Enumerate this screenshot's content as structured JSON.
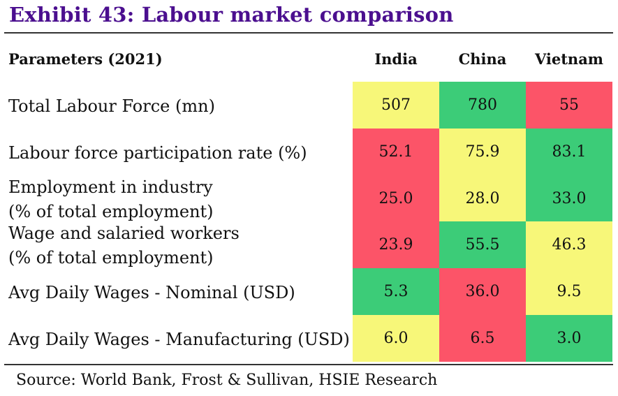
{
  "title": "Exhibit 43: Labour market comparison",
  "header": {
    "parameter": "Parameters (2021)",
    "countries": [
      "India",
      "China",
      "Vietnam"
    ]
  },
  "colors": {
    "title": "#4b0f8f",
    "green": "#3ccc78",
    "yellow": "#f7f779",
    "red": "#fc5468"
  },
  "rows": [
    {
      "label_lines": [
        "Total Labour Force (mn)"
      ],
      "values": [
        "507",
        "780",
        "55"
      ],
      "colors": [
        "yellow",
        "green",
        "red"
      ]
    },
    {
      "label_lines": [
        "Labour force participation rate (%)"
      ],
      "values": [
        "52.1",
        "75.9",
        "83.1"
      ],
      "colors": [
        "red",
        "yellow",
        "green"
      ]
    },
    {
      "label_lines": [
        "Employment in industry",
        "(% of total employment)"
      ],
      "values": [
        "25.0",
        "28.0",
        "33.0"
      ],
      "colors": [
        "red",
        "yellow",
        "green"
      ]
    },
    {
      "label_lines": [
        "Wage and salaried workers",
        "(% of total employment)"
      ],
      "values": [
        "23.9",
        "55.5",
        "46.3"
      ],
      "colors": [
        "red",
        "green",
        "yellow"
      ]
    },
    {
      "label_lines": [
        "Avg Daily Wages - Nominal (USD)"
      ],
      "values": [
        "5.3",
        "36.0",
        "9.5"
      ],
      "colors": [
        "green",
        "red",
        "yellow"
      ]
    },
    {
      "label_lines": [
        "Avg Daily Wages - Manufacturing (USD)"
      ],
      "values": [
        "6.0",
        "6.5",
        "3.0"
      ],
      "colors": [
        "yellow",
        "red",
        "green"
      ]
    }
  ],
  "source": "Source: World Bank, Frost & Sullivan, HSIE Research"
}
